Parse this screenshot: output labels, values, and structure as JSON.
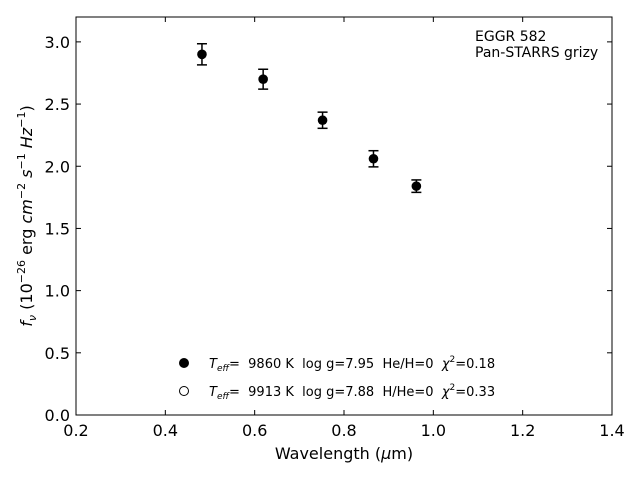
{
  "chart_data": {
    "type": "scatter",
    "xlim": [
      0.2,
      1.4
    ],
    "ylim": [
      0.0,
      3.2
    ],
    "x_ticks": [
      "0.2",
      "0.4",
      "0.6",
      "0.8",
      "1.0",
      "1.2",
      "1.4"
    ],
    "y_ticks": [
      "0.0",
      "0.5",
      "1.0",
      "1.5",
      "2.0",
      "2.5",
      "3.0"
    ],
    "xlabel": {
      "pre": "Wavelength (",
      "greek": "μ",
      "post": "m)"
    },
    "ylabel": {
      "f": "f",
      "nu": "ν",
      "open": " (10",
      "exp1": "−26",
      "erg": " erg ",
      "cm": "cm",
      "exp2": "−2",
      "s": " s",
      "exp3": "−1",
      "hz": " Hz",
      "exp4": "−1",
      "close": ")"
    },
    "annotation": [
      "EGGR 582",
      "Pan-STARRS grizy"
    ],
    "series": [
      {
        "marker": "filled-circle",
        "color": "#000000",
        "points": [
          {
            "x": 0.482,
            "y": 2.9,
            "yerr": 0.085
          },
          {
            "x": 0.619,
            "y": 2.7,
            "yerr": 0.08
          },
          {
            "x": 0.752,
            "y": 2.37,
            "yerr": 0.065
          },
          {
            "x": 0.866,
            "y": 2.06,
            "yerr": 0.065
          },
          {
            "x": 0.962,
            "y": 1.84,
            "yerr": 0.05
          }
        ]
      }
    ],
    "legend": [
      {
        "marker": "filled",
        "teff_label": "T",
        "teff_sub": "eff",
        "teff_value": "=  9860 K  log g=7.95  He/H=0",
        "chi_symbol": "χ",
        "chi_sup": "2",
        "chi_value": "=0.18"
      },
      {
        "marker": "open",
        "teff_label": "T",
        "teff_sub": "eff",
        "teff_value": "=  9913 K  log g=7.88  H/He=0",
        "chi_symbol": "χ",
        "chi_sup": "2",
        "chi_value": "=0.33"
      }
    ],
    "grid": false
  }
}
